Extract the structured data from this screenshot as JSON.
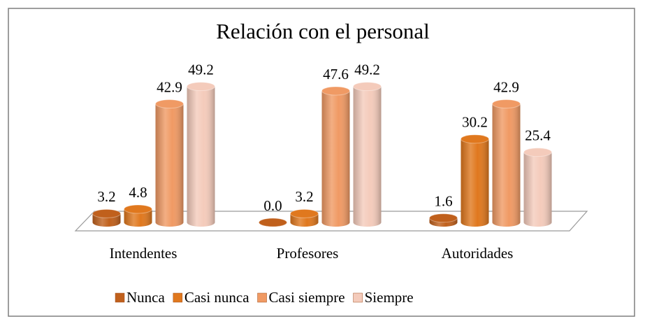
{
  "chart_data": {
    "type": "bar3d",
    "title": "Relación con el personal",
    "categories": [
      "Intendentes",
      "Profesores",
      "Autoridades"
    ],
    "series": [
      {
        "name": "Nunca",
        "color": "#c0601c",
        "values": [
          3.2,
          0.0,
          1.6
        ],
        "value_labels": [
          "3.2",
          "0.0",
          "1.6"
        ]
      },
      {
        "name": "Casi nunca",
        "color": "#e0781e",
        "values": [
          4.8,
          3.2,
          30.2
        ],
        "value_labels": [
          "4.8",
          "3.2",
          "30.2"
        ]
      },
      {
        "name": "Casi siempre",
        "color": "#f09a64",
        "values": [
          42.9,
          47.6,
          42.9
        ],
        "value_labels": [
          "42.9",
          "47.6",
          "42.9"
        ]
      },
      {
        "name": "Siempre",
        "color": "#f4cbbb",
        "values": [
          49.2,
          49.2,
          25.4
        ],
        "value_labels": [
          "49.2",
          "49.2",
          "25.4"
        ]
      }
    ],
    "legend": "bottom"
  }
}
